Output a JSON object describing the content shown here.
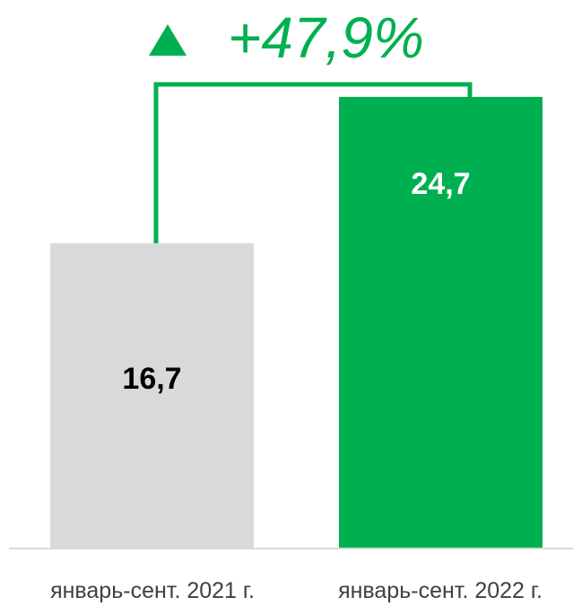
{
  "chart_data": {
    "type": "bar",
    "categories": [
      "январь-сент. 2021 г.",
      "январь-сент. 2022 г."
    ],
    "values": [
      16.7,
      24.7
    ],
    "value_labels": [
      "16,7",
      "24,7"
    ],
    "change_label": "+47,9%",
    "change_direction": "up",
    "ylim": [
      0,
      30
    ],
    "grid": false,
    "legend": "none",
    "colors": {
      "bar_previous": "#d9d9d9",
      "bar_current": "#00b050",
      "label_on_previous": "#000000",
      "label_on_current": "#ffffff",
      "accent": "#00b050",
      "axis": "#d9d9d9"
    }
  }
}
